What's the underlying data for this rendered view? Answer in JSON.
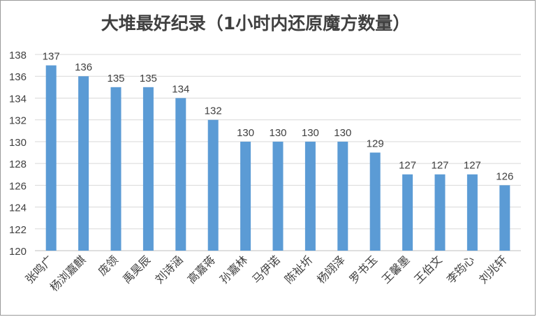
{
  "chart_data": {
    "type": "bar",
    "title": "大堆最好纪录（1小时内还原魔方数量）",
    "categories": [
      "张鸣广",
      "杨浏嘉麒",
      "庞领",
      "禹昊辰",
      "刘诗涵",
      "高嘉蒋",
      "孙嘉林",
      "马伊诺",
      "陈祉圻",
      "杨翊泽",
      "罗书玉",
      "王馨墨",
      "王伯文",
      "李筠心",
      "刘兆轩"
    ],
    "values": [
      137,
      136,
      135,
      135,
      134,
      132,
      130,
      130,
      130,
      130,
      129,
      127,
      127,
      127,
      126
    ],
    "ylim": [
      120,
      138
    ],
    "yticks": [
      120,
      122,
      124,
      126,
      128,
      130,
      132,
      134,
      136,
      138
    ],
    "grid": true,
    "legend": "none",
    "bar_color": "#5b9bd5",
    "grid_color": "#d9d9d9"
  }
}
